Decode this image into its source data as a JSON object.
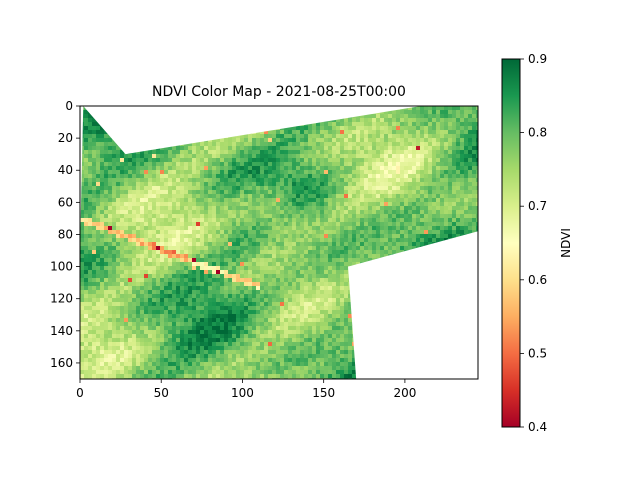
{
  "chart_data": {
    "type": "heatmap",
    "title": "NDVI Color Map - 2021-08-25T00:00",
    "xlabel": "",
    "ylabel": "",
    "xlim": [
      0,
      245
    ],
    "ylim": [
      170,
      0
    ],
    "xticks": [
      0,
      50,
      100,
      150,
      200
    ],
    "yticks": [
      0,
      20,
      40,
      60,
      80,
      100,
      120,
      140,
      160
    ],
    "colorbar": {
      "label": "NDVI",
      "range": [
        0.4,
        0.9
      ],
      "ticks": [
        0.4,
        0.5,
        0.6,
        0.7,
        0.8,
        0.9
      ],
      "colormap": [
        "#a50026",
        "#d73027",
        "#f46d43",
        "#fdae61",
        "#fee08b",
        "#ffffbf",
        "#d9ef8b",
        "#a6d96a",
        "#66bd63",
        "#1a9850",
        "#006837"
      ]
    },
    "valid_region": [
      [
        2,
        0
      ],
      [
        28,
        30
      ],
      [
        210,
        0
      ],
      [
        245,
        0
      ],
      [
        245,
        78
      ],
      [
        165,
        100
      ],
      [
        170,
        170
      ],
      [
        0,
        170
      ],
      [
        0,
        90
      ]
    ],
    "grid": false
  }
}
